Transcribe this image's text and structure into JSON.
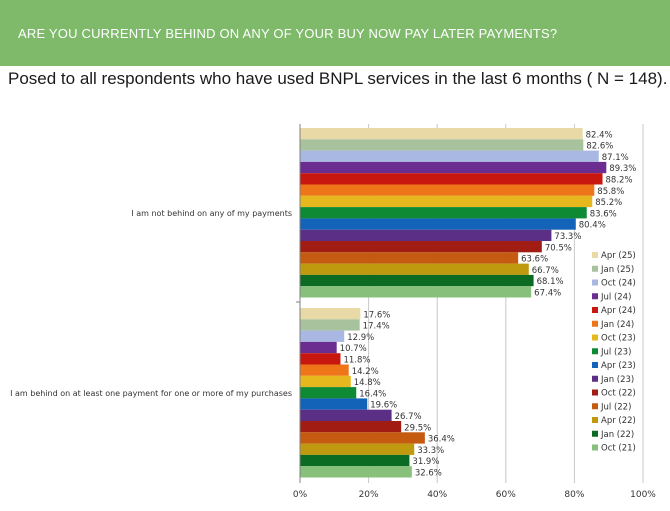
{
  "header": {
    "title": "ARE YOU CURRENTLY BEHIND ON ANY OF YOUR BUY NOW PAY LATER PAYMENTS?"
  },
  "subtitle": "Posed to all respondents who have used BNPL services in the last 6 months ( N = 148).",
  "chart_data": {
    "type": "bar",
    "orientation": "horizontal",
    "categories": [
      "I am not behind on any of my payments",
      "I am behind on at least one payment for one or more of my purchases"
    ],
    "series": [
      {
        "name": "Apr (25)",
        "color": "#e8d9a6",
        "values": [
          82.4,
          17.6
        ]
      },
      {
        "name": "Jan (25)",
        "color": "#a8c29e",
        "values": [
          82.6,
          17.4
        ]
      },
      {
        "name": "Oct (24)",
        "color": "#a9b8e3",
        "values": [
          87.1,
          12.9
        ]
      },
      {
        "name": "Jul (24)",
        "color": "#6b2d8f",
        "values": [
          89.3,
          10.7
        ]
      },
      {
        "name": "Apr (24)",
        "color": "#c8170f",
        "values": [
          88.2,
          11.8
        ]
      },
      {
        "name": "Jan (24)",
        "color": "#ee7518",
        "values": [
          85.8,
          14.2
        ]
      },
      {
        "name": "Oct (23)",
        "color": "#e6b81e",
        "values": [
          85.2,
          14.8
        ]
      },
      {
        "name": "Jul (23)",
        "color": "#0f8a34",
        "values": [
          83.6,
          16.4
        ]
      },
      {
        "name": "Apr (23)",
        "color": "#1363b8",
        "values": [
          80.4,
          19.6
        ]
      },
      {
        "name": "Jan (23)",
        "color": "#5c2f86",
        "values": [
          73.3,
          26.7
        ]
      },
      {
        "name": "Oct (22)",
        "color": "#a11c12",
        "values": [
          70.5,
          29.5
        ]
      },
      {
        "name": "Jul (22)",
        "color": "#c55a11",
        "values": [
          63.6,
          36.4
        ]
      },
      {
        "name": "Apr (22)",
        "color": "#c09a0e",
        "values": [
          66.7,
          33.3
        ]
      },
      {
        "name": "Jan (22)",
        "color": "#0b6b22",
        "values": [
          68.1,
          31.9
        ]
      },
      {
        "name": "Oct (21)",
        "color": "#86c07a",
        "values": [
          67.4,
          32.6
        ]
      }
    ],
    "xlim": [
      0,
      100
    ],
    "xticks": [
      "0%",
      "20%",
      "40%",
      "60%",
      "80%",
      "100%"
    ],
    "value_format": "percent_1dp",
    "legend": "right",
    "grid": "vertical",
    "grid_color": "#c8c8c8"
  }
}
